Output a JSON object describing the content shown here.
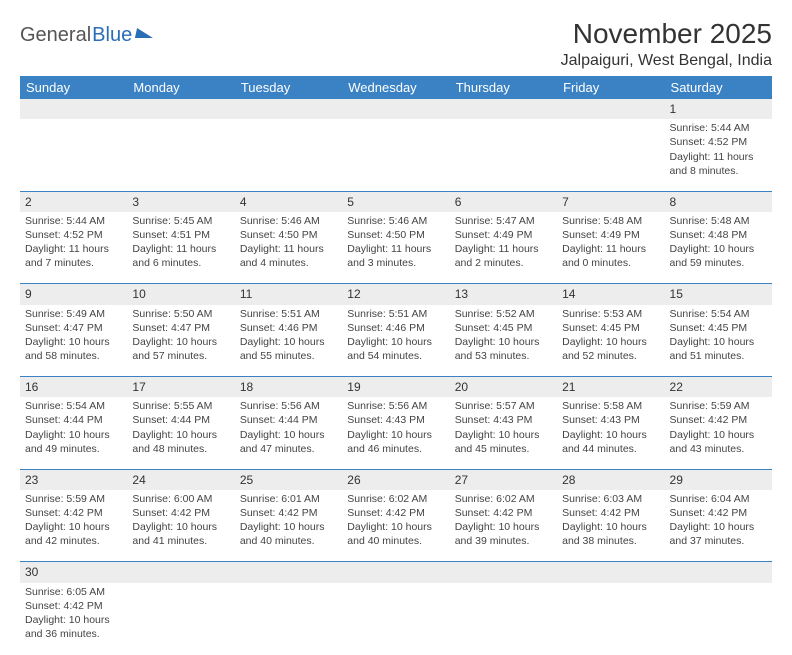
{
  "logo": {
    "part1": "General",
    "part2": "Blue"
  },
  "title": "November 2025",
  "location": "Jalpaiguri, West Bengal, India",
  "colors": {
    "header_bg": "#3a82c4",
    "header_text": "#ffffff",
    "daynum_bg": "#ededed",
    "row_border": "#3a82c4",
    "logo_accent": "#2a6eb6"
  },
  "weekdays": [
    "Sunday",
    "Monday",
    "Tuesday",
    "Wednesday",
    "Thursday",
    "Friday",
    "Saturday"
  ],
  "weeks": [
    [
      null,
      null,
      null,
      null,
      null,
      null,
      {
        "n": "1",
        "sr": "5:44 AM",
        "ss": "4:52 PM",
        "dl": "11 hours and 8 minutes."
      }
    ],
    [
      {
        "n": "2",
        "sr": "5:44 AM",
        "ss": "4:52 PM",
        "dl": "11 hours and 7 minutes."
      },
      {
        "n": "3",
        "sr": "5:45 AM",
        "ss": "4:51 PM",
        "dl": "11 hours and 6 minutes."
      },
      {
        "n": "4",
        "sr": "5:46 AM",
        "ss": "4:50 PM",
        "dl": "11 hours and 4 minutes."
      },
      {
        "n": "5",
        "sr": "5:46 AM",
        "ss": "4:50 PM",
        "dl": "11 hours and 3 minutes."
      },
      {
        "n": "6",
        "sr": "5:47 AM",
        "ss": "4:49 PM",
        "dl": "11 hours and 2 minutes."
      },
      {
        "n": "7",
        "sr": "5:48 AM",
        "ss": "4:49 PM",
        "dl": "11 hours and 0 minutes."
      },
      {
        "n": "8",
        "sr": "5:48 AM",
        "ss": "4:48 PM",
        "dl": "10 hours and 59 minutes."
      }
    ],
    [
      {
        "n": "9",
        "sr": "5:49 AM",
        "ss": "4:47 PM",
        "dl": "10 hours and 58 minutes."
      },
      {
        "n": "10",
        "sr": "5:50 AM",
        "ss": "4:47 PM",
        "dl": "10 hours and 57 minutes."
      },
      {
        "n": "11",
        "sr": "5:51 AM",
        "ss": "4:46 PM",
        "dl": "10 hours and 55 minutes."
      },
      {
        "n": "12",
        "sr": "5:51 AM",
        "ss": "4:46 PM",
        "dl": "10 hours and 54 minutes."
      },
      {
        "n": "13",
        "sr": "5:52 AM",
        "ss": "4:45 PM",
        "dl": "10 hours and 53 minutes."
      },
      {
        "n": "14",
        "sr": "5:53 AM",
        "ss": "4:45 PM",
        "dl": "10 hours and 52 minutes."
      },
      {
        "n": "15",
        "sr": "5:54 AM",
        "ss": "4:45 PM",
        "dl": "10 hours and 51 minutes."
      }
    ],
    [
      {
        "n": "16",
        "sr": "5:54 AM",
        "ss": "4:44 PM",
        "dl": "10 hours and 49 minutes."
      },
      {
        "n": "17",
        "sr": "5:55 AM",
        "ss": "4:44 PM",
        "dl": "10 hours and 48 minutes."
      },
      {
        "n": "18",
        "sr": "5:56 AM",
        "ss": "4:44 PM",
        "dl": "10 hours and 47 minutes."
      },
      {
        "n": "19",
        "sr": "5:56 AM",
        "ss": "4:43 PM",
        "dl": "10 hours and 46 minutes."
      },
      {
        "n": "20",
        "sr": "5:57 AM",
        "ss": "4:43 PM",
        "dl": "10 hours and 45 minutes."
      },
      {
        "n": "21",
        "sr": "5:58 AM",
        "ss": "4:43 PM",
        "dl": "10 hours and 44 minutes."
      },
      {
        "n": "22",
        "sr": "5:59 AM",
        "ss": "4:42 PM",
        "dl": "10 hours and 43 minutes."
      }
    ],
    [
      {
        "n": "23",
        "sr": "5:59 AM",
        "ss": "4:42 PM",
        "dl": "10 hours and 42 minutes."
      },
      {
        "n": "24",
        "sr": "6:00 AM",
        "ss": "4:42 PM",
        "dl": "10 hours and 41 minutes."
      },
      {
        "n": "25",
        "sr": "6:01 AM",
        "ss": "4:42 PM",
        "dl": "10 hours and 40 minutes."
      },
      {
        "n": "26",
        "sr": "6:02 AM",
        "ss": "4:42 PM",
        "dl": "10 hours and 40 minutes."
      },
      {
        "n": "27",
        "sr": "6:02 AM",
        "ss": "4:42 PM",
        "dl": "10 hours and 39 minutes."
      },
      {
        "n": "28",
        "sr": "6:03 AM",
        "ss": "4:42 PM",
        "dl": "10 hours and 38 minutes."
      },
      {
        "n": "29",
        "sr": "6:04 AM",
        "ss": "4:42 PM",
        "dl": "10 hours and 37 minutes."
      }
    ],
    [
      {
        "n": "30",
        "sr": "6:05 AM",
        "ss": "4:42 PM",
        "dl": "10 hours and 36 minutes."
      },
      null,
      null,
      null,
      null,
      null,
      null
    ]
  ],
  "labels": {
    "sunrise": "Sunrise: ",
    "sunset": "Sunset: ",
    "daylight": "Daylight: "
  }
}
